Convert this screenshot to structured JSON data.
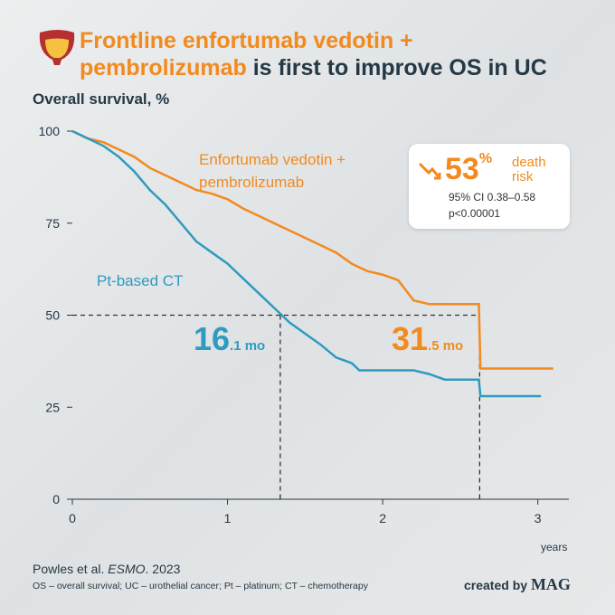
{
  "chart_data": {
    "type": "line",
    "title_parts": [
      "Frontline enfortumab vedotin +",
      "pembrolizumab",
      "is first to improve OS in UC"
    ],
    "y_label": "Overall survival, %",
    "x_label": "years",
    "xlim": [
      0,
      3.2
    ],
    "ylim": [
      0,
      100
    ],
    "xticks": [
      0,
      1,
      2,
      3
    ],
    "yticks": [
      0,
      25,
      50,
      75,
      100
    ],
    "x": [
      0,
      0.1,
      0.2,
      0.3,
      0.4,
      0.5,
      0.6,
      0.7,
      0.8,
      0.9,
      1.0,
      1.1,
      1.2,
      1.3,
      1.35,
      1.4,
      1.5,
      1.6,
      1.7,
      1.8,
      1.85,
      1.9,
      2.0,
      2.1,
      2.2,
      2.3,
      2.4,
      2.5,
      2.62,
      2.63,
      2.8,
      3.02,
      3.1
    ],
    "series": [
      {
        "name": "Enfortumab vedotin + pembrolizumab",
        "color": "#f28a1e",
        "values": [
          100,
          98,
          97,
          95,
          93,
          90,
          88,
          86,
          84,
          83,
          81.5,
          79,
          77,
          75,
          74,
          73,
          71,
          69,
          67,
          64,
          63,
          62,
          61,
          59.5,
          54,
          53,
          53,
          53,
          53,
          35.5,
          35.5,
          35.5,
          35.5
        ]
      },
      {
        "name": "Pt-based CT",
        "color": "#2e9bbf",
        "values": [
          100,
          98,
          96,
          93,
          89,
          84,
          80,
          75,
          70,
          67,
          64,
          60,
          56,
          52,
          50,
          48,
          45,
          42,
          38.5,
          37,
          35,
          35,
          35,
          35,
          35,
          34,
          32.5,
          32.5,
          32.5,
          28,
          28,
          28,
          null
        ]
      }
    ],
    "median_line": {
      "y": 50,
      "x": [
        1.34,
        2.625
      ]
    },
    "medians": [
      {
        "number": "16",
        "suffix": ".1 mo",
        "color": "#2e9bbf"
      },
      {
        "number": "31",
        "suffix": ".5 mo",
        "color": "#f28a1e"
      }
    ],
    "hazard_box": {
      "number": "53",
      "unit": "%",
      "text": "death risk",
      "ci": "95% CI 0.38–0.58",
      "p": "p<0.00001"
    },
    "source_parts": [
      "Powles et al.",
      "ESMO",
      ". 2023"
    ],
    "footnote": "OS – overall survival; UC – urothelial cancer; Pt – platinum; CT – chemotherapy",
    "credit_parts": [
      "created by",
      "MAG"
    ],
    "grid": false
  }
}
